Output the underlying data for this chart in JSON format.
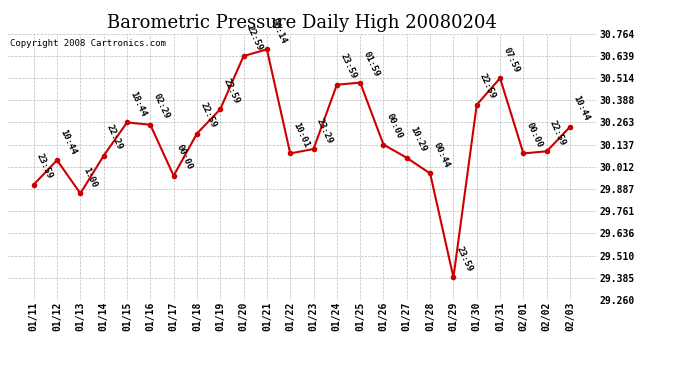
{
  "title": "Barometric Pressure Daily High 20080204",
  "copyright": "Copyright 2008 Cartronics.com",
  "x_labels": [
    "01/11",
    "01/12",
    "01/13",
    "01/14",
    "01/15",
    "01/16",
    "01/17",
    "01/18",
    "01/19",
    "01/20",
    "01/21",
    "01/22",
    "01/23",
    "01/24",
    "01/25",
    "01/26",
    "01/27",
    "01/28",
    "01/29",
    "01/30",
    "01/31",
    "02/01",
    "02/02",
    "02/03"
  ],
  "y_values": [
    29.912,
    30.05,
    29.862,
    30.075,
    30.263,
    30.25,
    29.962,
    30.2,
    30.338,
    30.638,
    30.676,
    30.088,
    30.113,
    30.476,
    30.488,
    30.138,
    30.063,
    29.975,
    29.388,
    30.363,
    30.513,
    30.088,
    30.1,
    30.238
  ],
  "point_labels": [
    "23:59",
    "10:44",
    "1:00",
    "22:29",
    "18:44",
    "02:29",
    "00:00",
    "22:59",
    "22:59",
    "22:59",
    "06:14",
    "10:01",
    "23:29",
    "23:59",
    "01:59",
    "00:00",
    "10:29",
    "00:44",
    "23:59",
    "22:59",
    "07:59",
    "00:00",
    "22:59",
    "10:44"
  ],
  "y_min": 29.26,
  "y_max": 30.764,
  "y_ticks": [
    29.26,
    29.385,
    29.51,
    29.636,
    29.761,
    29.887,
    30.012,
    30.137,
    30.263,
    30.388,
    30.514,
    30.639,
    30.764
  ],
  "line_color": "#cc0000",
  "marker_color": "#cc0000",
  "bg_color": "#ffffff",
  "grid_color": "#bbbbbb",
  "title_fontsize": 13,
  "label_fontsize": 7,
  "point_label_fontsize": 6.5,
  "copyright_fontsize": 6.5
}
